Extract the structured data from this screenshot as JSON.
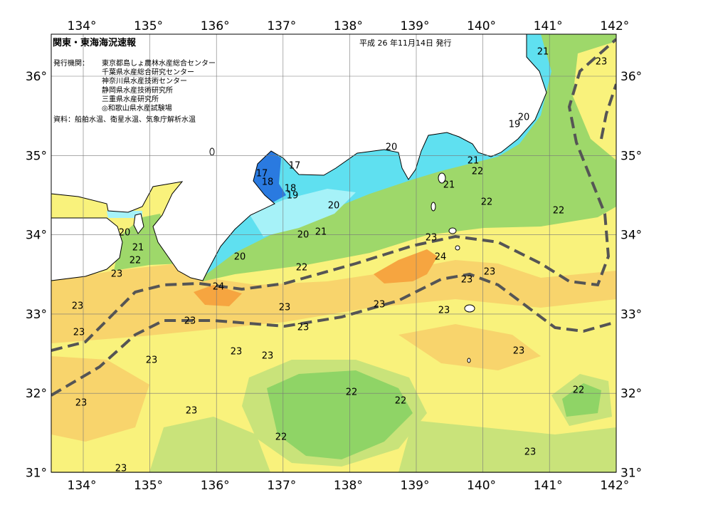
{
  "header": {
    "title": "関東・東海海況速報",
    "issued": "平成 26 年11月14日 発行",
    "publisher_label": "発行機関：",
    "publishers": [
      "東京都島しょ農林水産総合センター",
      "千葉県水産総合研究センター",
      "神奈川県水産技術センター",
      "静岡県水産技術研究所",
      "三重県水産研究所",
      "◎和歌山県水産試験場"
    ],
    "source": "資料：船舶水温、衛星水温、気象庁解析水温"
  },
  "map": {
    "lon_labels": [
      "134°",
      "135°",
      "136°",
      "137°",
      "138°",
      "139°",
      "140°",
      "141°",
      "142°"
    ],
    "lat_labels": [
      "36°",
      "35°",
      "34°",
      "33°",
      "32°",
      "31°"
    ],
    "contour_labels": [
      "21",
      "23",
      "20",
      "19",
      "20",
      "17",
      "17",
      "18",
      "18",
      "19",
      "21",
      "22",
      "21",
      "22",
      "22",
      "20",
      "20",
      "21",
      "20",
      "23",
      "21",
      "22",
      "20",
      "24",
      "23",
      "22",
      "23",
      "23",
      "24",
      "23",
      "23",
      "23",
      "23",
      "23",
      "23",
      "23",
      "23",
      "23",
      "23",
      "23",
      "22",
      "22",
      "22",
      "23",
      "23",
      "22",
      "23",
      "23"
    ]
  }
}
